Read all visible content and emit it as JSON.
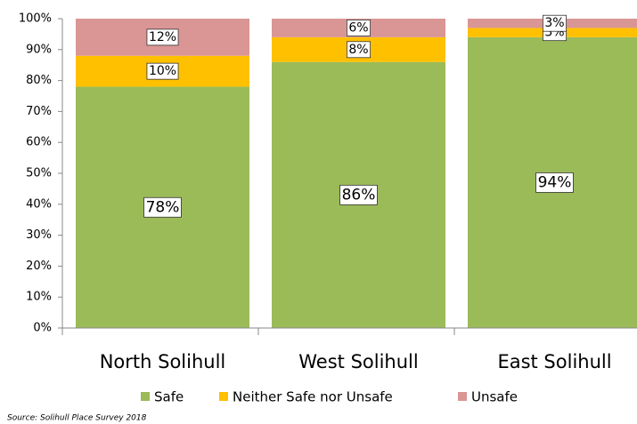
{
  "chart_data": {
    "type": "stacked_bar",
    "categories": [
      "North Solihull",
      "West Solihull",
      "East Solihull"
    ],
    "series": [
      {
        "name": "Safe",
        "color": "#9bbb59",
        "values": [
          78,
          86,
          94
        ],
        "value_labels": [
          "78%",
          "86%",
          "94%"
        ]
      },
      {
        "name": "Neither Safe nor Unsafe",
        "color": "#ffc000",
        "values": [
          10,
          8,
          3
        ],
        "value_labels": [
          "10%",
          "8%",
          "3%"
        ]
      },
      {
        "name": "Unsafe",
        "color": "#d99694",
        "values": [
          12,
          6,
          3
        ],
        "value_labels": [
          "12%",
          "6%",
          "3%"
        ]
      }
    ],
    "ylim": [
      0,
      100
    ],
    "yticks": [
      {
        "value": 0,
        "label": "0%"
      },
      {
        "value": 10,
        "label": "10%"
      },
      {
        "value": 20,
        "label": "20%"
      },
      {
        "value": 30,
        "label": "30%"
      },
      {
        "value": 40,
        "label": "40%"
      },
      {
        "value": 50,
        "label": "50%"
      },
      {
        "value": 60,
        "label": "60%"
      },
      {
        "value": 70,
        "label": "70%"
      },
      {
        "value": 80,
        "label": "80%"
      },
      {
        "value": 90,
        "label": "90%"
      },
      {
        "value": 100,
        "label": "100%"
      }
    ],
    "grid": false,
    "legend": "bottom",
    "annotation": "Source: Solihull Place Survey 2018"
  }
}
